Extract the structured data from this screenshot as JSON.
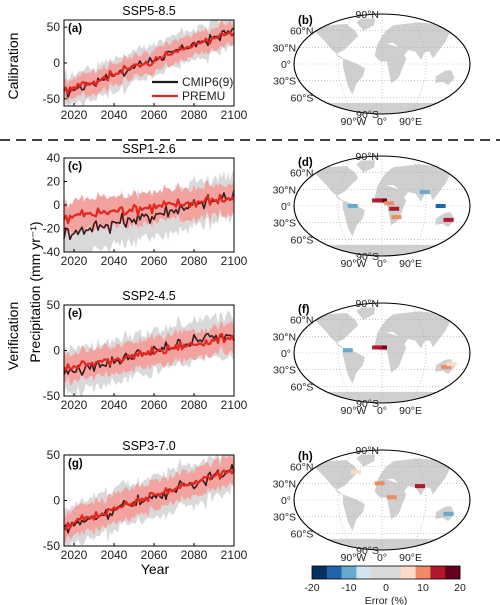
{
  "figure": {
    "row_label_calibration": "Calibration",
    "row_label_verification": "Verification",
    "ylabel": "Precipitation (mm yr⁻¹)",
    "xlabel": "Year"
  },
  "legend": {
    "entries": [
      {
        "label": "CMIP6(9)",
        "color": "#1a1a1a"
      },
      {
        "label": "PREMU",
        "color": "#e3271f"
      }
    ]
  },
  "colors": {
    "cmip6_line": "#3a1a1a",
    "premu_line": "#e3271f",
    "cmip6_band": "#d9d9d9",
    "premu_band": "#f2a3a0",
    "map_land": "#cfcfcf",
    "map_ocean": "#ffffff"
  },
  "chart_data": [
    {
      "type": "line",
      "panel": "(a)",
      "title": "SSP5-8.5",
      "x_range": [
        2015,
        2100
      ],
      "ylim": [
        -60,
        60
      ],
      "xticks": [
        "2020",
        "2040",
        "2060",
        "2080",
        "2100"
      ],
      "yticks": [
        "-50",
        "0",
        "50"
      ],
      "series": [
        {
          "name": "CMIP6(9)",
          "start": -42,
          "end": 46,
          "noise": 9
        },
        {
          "name": "PREMU",
          "start": -40,
          "end": 44,
          "noise": 7
        }
      ],
      "band_halfwidth": 18,
      "has_legend": true
    },
    {
      "type": "line",
      "panel": "(c)",
      "title": "SSP1-2.6",
      "x_range": [
        2015,
        2100
      ],
      "ylim": [
        -40,
        40
      ],
      "xticks": [
        "2020",
        "2040",
        "2060",
        "2080",
        "2100"
      ],
      "yticks": [
        "-40",
        "-20",
        "0",
        "20",
        "40"
      ],
      "series": [
        {
          "name": "CMIP6(9)",
          "start": -25,
          "end": 7,
          "noise": 8
        },
        {
          "name": "PREMU",
          "start": -10,
          "end": 6,
          "noise": 6
        }
      ],
      "band_halfwidth": 15
    },
    {
      "type": "line",
      "panel": "(e)",
      "title": "SSP2-4.5",
      "x_range": [
        2015,
        2100
      ],
      "ylim": [
        -50,
        50
      ],
      "xticks": [
        "2020",
        "2040",
        "2060",
        "2080",
        "2100"
      ],
      "yticks": [
        "-50",
        "0",
        "50"
      ],
      "series": [
        {
          "name": "CMIP6(9)",
          "start": -25,
          "end": 20,
          "noise": 9
        },
        {
          "name": "PREMU",
          "start": -20,
          "end": 15,
          "noise": 6
        }
      ],
      "band_halfwidth": 18
    },
    {
      "type": "line",
      "panel": "(g)",
      "title": "SSP3-7.0",
      "x_range": [
        2015,
        2100
      ],
      "ylim": [
        -50,
        50
      ],
      "xticks": [
        "2020",
        "2040",
        "2060",
        "2080",
        "2100"
      ],
      "yticks": [
        "-50",
        "0",
        "50"
      ],
      "series": [
        {
          "name": "CMIP6(9)",
          "start": -30,
          "end": 35,
          "noise": 8
        },
        {
          "name": "PREMU",
          "start": -28,
          "end": 34,
          "noise": 6
        }
      ],
      "band_halfwidth": 18
    }
  ],
  "maps": [
    {
      "panel": "(b)",
      "hotspots": []
    },
    {
      "panel": "(d)",
      "hotspots": [
        {
          "lon": 0,
          "lat": 10,
          "color": "#7a0016"
        },
        {
          "lon": -10,
          "lat": 10,
          "color": "#b2182b"
        },
        {
          "lon": 15,
          "lat": 5,
          "color": "#ef8a62"
        },
        {
          "lon": -60,
          "lat": 0,
          "color": "#67a9cf"
        },
        {
          "lon": 30,
          "lat": -20,
          "color": "#ef8a62"
        },
        {
          "lon": 120,
          "lat": 0,
          "color": "#2166ac"
        },
        {
          "lon": 140,
          "lat": -25,
          "color": "#b2182b"
        },
        {
          "lon": 90,
          "lat": 25,
          "color": "#67a9cf"
        },
        {
          "lon": 25,
          "lat": -5,
          "color": "#b2182b"
        }
      ]
    },
    {
      "panel": "(f)",
      "hotspots": [
        {
          "lon": 0,
          "lat": 10,
          "color": "#7a0016"
        },
        {
          "lon": -10,
          "lat": 10,
          "color": "#b2182b"
        },
        {
          "lon": -70,
          "lat": 5,
          "color": "#67a9cf"
        },
        {
          "lon": 135,
          "lat": -25,
          "color": "#ef8a62"
        },
        {
          "lon": 145,
          "lat": -20,
          "color": "#fddbc7"
        }
      ]
    },
    {
      "panel": "(h)",
      "hotspots": [
        {
          "lon": 80,
          "lat": 25,
          "color": "#b2182b"
        },
        {
          "lon": 20,
          "lat": 5,
          "color": "#ef8a62"
        },
        {
          "lon": -5,
          "lat": 30,
          "color": "#ef8a62"
        },
        {
          "lon": 140,
          "lat": -25,
          "color": "#67a9cf"
        },
        {
          "lon": -60,
          "lat": 50,
          "color": "#fddbc7"
        }
      ]
    }
  ],
  "map_labels": {
    "lat": [
      "90°N",
      "60°N",
      "30°N",
      "0°",
      "30°S",
      "60°S",
      "90°S"
    ],
    "lon": [
      "90°W",
      "0°",
      "90°E"
    ]
  },
  "colorbar": {
    "label": "Error (%)",
    "ticks": [
      "-20",
      "-10",
      "0",
      "10",
      "20"
    ],
    "colors": [
      "#053061",
      "#2166ac",
      "#67a9cf",
      "#d1e5f0",
      "#d9d9d9",
      "#d9d9d9",
      "#fddbc7",
      "#ef8a62",
      "#b2182b",
      "#67001f"
    ]
  }
}
